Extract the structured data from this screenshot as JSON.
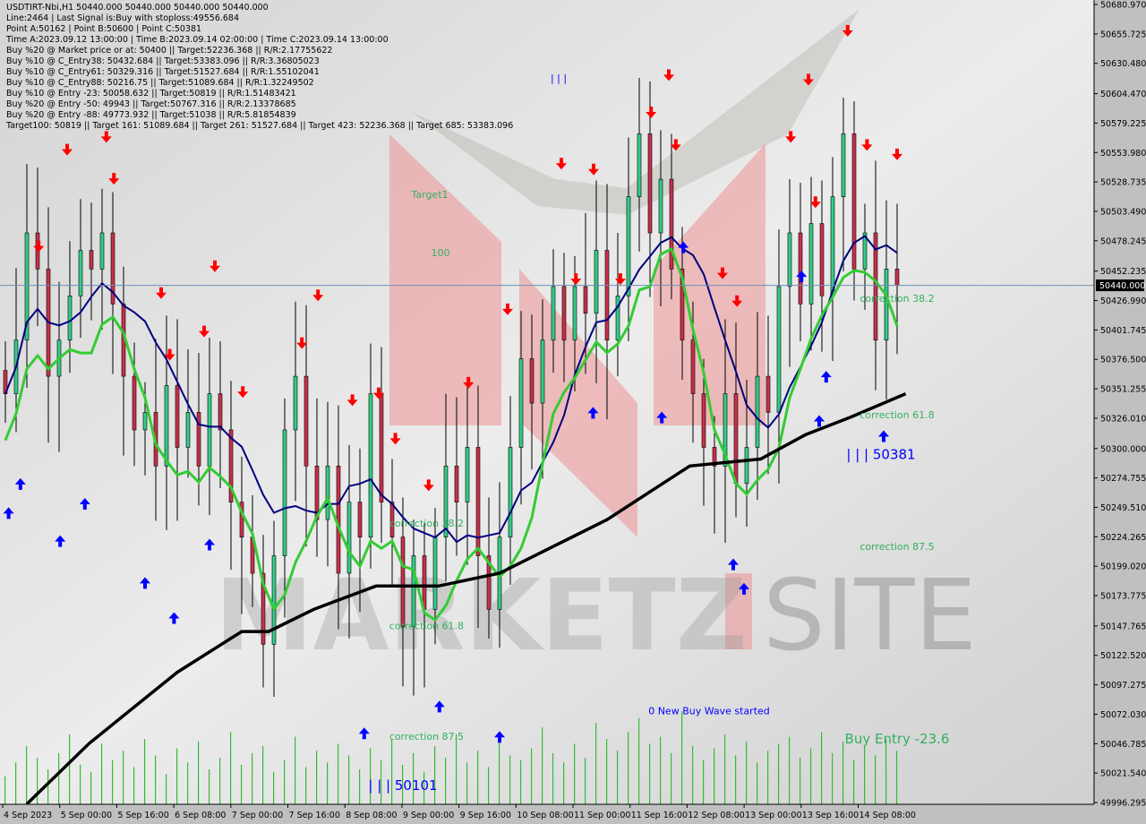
{
  "header": {
    "title_line": "USDTIRT-Nbi,H1  50440.000 50440.000 50440.000 50440.000",
    "lines": [
      "Line:2464 | Last Signal is:Buy with stoploss:49556.684",
      "Point A:50162 | Point B:50600 | Point C:50381",
      "Time A:2023.09.12 13:00:00 | Time B:2023.09.14 02:00:00 | Time C:2023.09.14 13:00:00",
      "Buy %20 @ Market price or at: 50400 || Target:52236.368 || R/R:2.17755622",
      "Buy %10 @ C_Entry38: 50432.684 || Target:53383.096 || R/R:3.36805023",
      "Buy %10 @ C_Entry61: 50329.316 || Target:51527.684 || R/R:1.55102041",
      "Buy %10 @ C_Entry88: 50216.75 || Target:51089.684 || R/R:1.32249502",
      "Buy %10 @ Entry -23: 50058.632 || Target:50819 || R/R:1.51483421",
      "Buy %20 @ Entry -50: 49943 || Target:50767.316 || R/R:2.13378685",
      "Buy %20 @ Entry -88: 49773.932 || Target:51038 || R/R:5.81854839",
      "Target100: 50819 || Target 161: 51089.684 || Target 261: 51527.684 || Target 423: 52236.368 || Target 685: 53383.096"
    ]
  },
  "watermark": {
    "text_left": "MARKETZ",
    "text_right": "SITE"
  },
  "colors": {
    "background": "#e0e0e0",
    "bull": "#33cc88",
    "bear": "#c8304a",
    "ma_fast": "#33cc33",
    "ma_slow": "#000080",
    "ma_long": "#000000",
    "buy_arrow": "#0000ff",
    "sell_arrow": "#ff0000",
    "label_green": "#33b060",
    "label_blue": "#0000ff",
    "volume": "#33bb33"
  },
  "chart_data": {
    "type": "candlestick",
    "symbol": "USDTIRT-Nbi",
    "timeframe": "H1",
    "current_price": "50440.000",
    "ylim": [
      49996.295,
      50680.97
    ],
    "y_ticks": [
      "50680.970",
      "50655.725",
      "50630.480",
      "50604.470",
      "50579.225",
      "50553.980",
      "50528.735",
      "50503.490",
      "50478.245",
      "50452.235",
      "50426.990",
      "50401.745",
      "50376.500",
      "50351.255",
      "50326.010",
      "50300.000",
      "50274.755",
      "50249.510",
      "50224.265",
      "50199.020",
      "50173.775",
      "50147.765",
      "50122.520",
      "50097.275",
      "50072.030",
      "50046.785",
      "50021.540",
      "49996.295"
    ],
    "x_ticks": [
      "4 Sep 2023",
      "5 Sep 00:00",
      "5 Sep 16:00",
      "6 Sep 08:00",
      "7 Sep 00:00",
      "7 Sep 16:00",
      "8 Sep 08:00",
      "9 Sep 00:00",
      "9 Sep 16:00",
      "10 Sep 08:00",
      "11 Sep 00:00",
      "11 Sep 16:00",
      "12 Sep 08:00",
      "13 Sep 00:00",
      "13 Sep 16:00",
      "14 Sep 08:00"
    ],
    "close": [
      50347,
      50393,
      50485,
      50454,
      50362,
      50393,
      50431,
      50470,
      50454,
      50485,
      50424,
      50362,
      50316,
      50331,
      50285,
      50354,
      50301,
      50331,
      50285,
      50347,
      50316,
      50254,
      50224,
      50193,
      50132,
      50208,
      50316,
      50362,
      50285,
      50239,
      50285,
      50193,
      50254,
      50224,
      50347,
      50254,
      50224,
      50147,
      50208,
      50162,
      50224,
      50285,
      50254,
      50301,
      50208,
      50162,
      50224,
      50301,
      50377,
      50339,
      50393,
      50439,
      50393,
      50439,
      50416,
      50470,
      50393,
      50431,
      50516,
      50570,
      50485,
      50531,
      50454,
      50393,
      50347,
      50301,
      50285,
      50347,
      50270,
      50301,
      50362,
      50331,
      50439,
      50485,
      50424,
      50493,
      50431,
      50516,
      50570,
      50454,
      50485,
      50393,
      50454,
      50440
    ],
    "volume": [
      12,
      18,
      25,
      20,
      15,
      22,
      30,
      17,
      14,
      26,
      19,
      23,
      16,
      28,
      21,
      13,
      24,
      18,
      27,
      15,
      20,
      31,
      17,
      22,
      25,
      14,
      19,
      29,
      16,
      23,
      18,
      26,
      21,
      15,
      24,
      19,
      28,
      17,
      22,
      14,
      25,
      20,
      30,
      18,
      23,
      16,
      27,
      21,
      19,
      24,
      33,
      22,
      18,
      26,
      20,
      35,
      28,
      23,
      31,
      37,
      26,
      29,
      22,
      40,
      25,
      19,
      24,
      30,
      21,
      27,
      18,
      23,
      26,
      29,
      20,
      24,
      31,
      22,
      27,
      19,
      25,
      21,
      28,
      23
    ],
    "ma_long": [
      [
        2,
        49995
      ],
      [
        7.8,
        50047
      ],
      [
        16,
        50108
      ],
      [
        22,
        50143
      ],
      [
        24.5,
        50143
      ],
      [
        28.7,
        50162
      ],
      [
        34.5,
        50182
      ],
      [
        40.3,
        50182
      ],
      [
        46,
        50193
      ],
      [
        51,
        50216
      ],
      [
        56,
        50239
      ],
      [
        63.7,
        50285
      ],
      [
        70.3,
        50291
      ],
      [
        74.5,
        50312
      ],
      [
        78.7,
        50327
      ],
      [
        83.8,
        50347
      ]
    ],
    "sell_signals": [
      [
        5.75,
        50556
      ],
      [
        9.4,
        50567
      ],
      [
        10.1,
        50531
      ],
      [
        3.1,
        50473
      ],
      [
        19.5,
        50456
      ],
      [
        14.5,
        50433
      ],
      [
        29.1,
        50431
      ],
      [
        18.5,
        50400
      ],
      [
        15.3,
        50380
      ],
      [
        22.1,
        50348
      ],
      [
        27.6,
        50390
      ],
      [
        32.3,
        50341
      ],
      [
        34.75,
        50347
      ],
      [
        36.3,
        50308
      ],
      [
        39.4,
        50268
      ],
      [
        43.1,
        50356
      ],
      [
        46.75,
        50419
      ],
      [
        51.75,
        50544
      ],
      [
        54.75,
        50539
      ],
      [
        61.75,
        50620
      ],
      [
        60.1,
        50588
      ],
      [
        62.4,
        50560
      ],
      [
        66.75,
        50450
      ],
      [
        68.1,
        50426
      ],
      [
        73.1,
        50567
      ],
      [
        74.75,
        50616
      ],
      [
        75.4,
        50511
      ],
      [
        78.4,
        50658
      ],
      [
        80.2,
        50560
      ],
      [
        83,
        50552
      ],
      [
        53.1,
        50445
      ],
      [
        57.25,
        50445
      ]
    ],
    "buy_signals": [
      [
        0.3,
        50245
      ],
      [
        1.4,
        50270
      ],
      [
        5.1,
        50221
      ],
      [
        7.4,
        50253
      ],
      [
        13,
        50185
      ],
      [
        15.7,
        50155
      ],
      [
        19,
        50218
      ],
      [
        33.4,
        50056
      ],
      [
        40.4,
        50079
      ],
      [
        46,
        50053
      ],
      [
        54.7,
        50331
      ],
      [
        61.1,
        50327
      ],
      [
        63.1,
        50473
      ],
      [
        67.75,
        50201
      ],
      [
        68.75,
        50180
      ],
      [
        74.1,
        50448
      ],
      [
        75.75,
        50324
      ],
      [
        76.4,
        50362
      ],
      [
        81.75,
        50311
      ]
    ],
    "annotations": [
      {
        "text": "Target1",
        "i": 39.5,
        "p": 50515,
        "color": "green"
      },
      {
        "text": "100",
        "i": 40.5,
        "p": 50465,
        "color": "green"
      },
      {
        "text": "| | |",
        "i": 51.5,
        "p": 50615,
        "color": "blue"
      },
      {
        "text": "correction 38.2",
        "i": 39.2,
        "p": 50233,
        "color": "green"
      },
      {
        "text": "correction 61.8",
        "i": 39.2,
        "p": 50145,
        "color": "green"
      },
      {
        "text": "correction 87.5",
        "i": 39.2,
        "p": 50050,
        "color": "green"
      },
      {
        "text": "| | | 50101",
        "i": 37,
        "p": 50007,
        "color": "blue",
        "big": true
      },
      {
        "text": "0 New Buy Wave started",
        "i": 65.5,
        "p": 50072,
        "color": "blue"
      },
      {
        "text": "correction 38.2",
        "i": 83,
        "p": 50426,
        "color": "green"
      },
      {
        "text": "correction 61.8",
        "i": 83,
        "p": 50326,
        "color": "green"
      },
      {
        "text": "correction 87.5",
        "i": 83,
        "p": 50213,
        "color": "green"
      },
      {
        "text": "Buy Entry -23.6",
        "i": 83,
        "p": 50047,
        "color": "green",
        "big": true
      },
      {
        "text": "| | | 50381",
        "i": 81.5,
        "p": 50291,
        "color": "blue",
        "big": true
      }
    ]
  }
}
